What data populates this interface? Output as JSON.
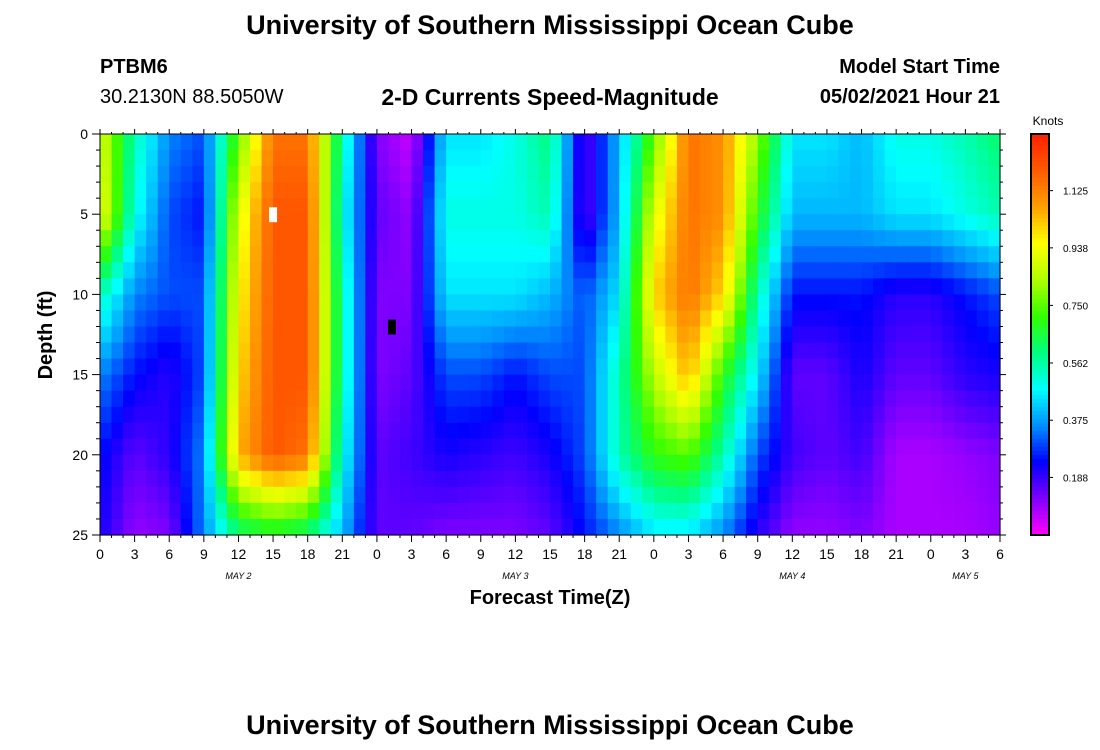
{
  "page": {
    "title_top": "University of Southern Mississippi Ocean Cube",
    "title_bottom": "University of Southern Mississippi Ocean Cube",
    "station": "PTBM6",
    "location": "30.2130N  88.5050W",
    "chart_title": "2-D Currents Speed-Magnitude",
    "model_start_label": "Model Start Time",
    "model_start_value": "05/02/2021 Hour 21"
  },
  "chart_data": {
    "type": "heatmap",
    "title": "2-D Currents Speed-Magnitude",
    "xlabel": "Forecast Time(Z)",
    "ylabel": "Depth (ft)",
    "units_label": "Knots",
    "xlim_hours": [
      0,
      78
    ],
    "ylim": [
      25,
      0
    ],
    "y_ticks": [
      "0",
      "5",
      "10",
      "15",
      "20",
      "25"
    ],
    "x_tick_labels": [
      "0",
      "3",
      "6",
      "9",
      "12",
      "15",
      "18",
      "21",
      "0",
      "3",
      "6",
      "9",
      "12",
      "15",
      "18",
      "21",
      "0",
      "3",
      "6",
      "9",
      "12",
      "15",
      "18",
      "21",
      "0",
      "3",
      "6"
    ],
    "day_labels": [
      {
        "text": "MAY 2",
        "hour": 12
      },
      {
        "text": "MAY 3",
        "hour": 36
      },
      {
        "text": "MAY 4",
        "hour": 60
      },
      {
        "text": "MAY 5",
        "hour": 75
      }
    ],
    "colorbar": {
      "min": 0,
      "max": 1.31,
      "tick_labels": [
        "1.125",
        "0.938",
        "0.750",
        "0.562",
        "0.375",
        "0.188"
      ],
      "tick_values": [
        1.125,
        0.938,
        0.75,
        0.562,
        0.375,
        0.188
      ],
      "colors": [
        "#ff00ff",
        "#8000ff",
        "#0000ff",
        "#0090ff",
        "#00ffff",
        "#00ff80",
        "#33ff00",
        "#b0ff00",
        "#ffff00",
        "#ffa000",
        "#ff5a00",
        "#ff2000"
      ]
    },
    "grid": false,
    "series": [
      {
        "depth_ft": 0,
        "values": [
          0.9,
          0.55,
          0.35,
          0.3,
          0.75,
          1.15,
          1.15,
          0.55,
          0.12,
          0.05,
          0.45,
          0.45,
          0.5,
          0.6,
          0.15,
          0.4,
          0.75,
          1.15,
          1.1,
          0.8,
          0.45,
          0.45,
          0.4,
          0.5,
          0.5,
          0.55,
          0.62
        ]
      },
      {
        "depth_ft": 5,
        "values": [
          0.95,
          0.5,
          0.3,
          0.25,
          0.9,
          1.2,
          1.2,
          0.5,
          0.15,
          0.1,
          0.5,
          0.5,
          0.5,
          0.55,
          0.15,
          0.4,
          0.9,
          1.15,
          1.1,
          0.7,
          0.4,
          0.4,
          0.4,
          0.45,
          0.45,
          0.5,
          0.55
        ]
      },
      {
        "depth_ft": 10,
        "values": [
          0.55,
          0.35,
          0.3,
          0.3,
          0.95,
          1.2,
          1.2,
          0.55,
          0.12,
          0.12,
          0.45,
          0.45,
          0.45,
          0.4,
          0.3,
          0.45,
          1.0,
          1.15,
          1.0,
          0.55,
          0.25,
          0.25,
          0.25,
          0.2,
          0.2,
          0.25,
          0.3
        ]
      },
      {
        "depth_ft": 15,
        "values": [
          0.35,
          0.25,
          0.2,
          0.3,
          1.0,
          1.2,
          1.2,
          0.55,
          0.12,
          0.15,
          0.3,
          0.3,
          0.25,
          0.3,
          0.3,
          0.55,
          0.85,
          1.05,
          0.7,
          0.45,
          0.15,
          0.15,
          0.22,
          0.15,
          0.15,
          0.2,
          0.22
        ]
      },
      {
        "depth_ft": 20,
        "values": [
          0.25,
          0.15,
          0.2,
          0.35,
          1.05,
          1.2,
          1.15,
          0.5,
          0.15,
          0.18,
          0.22,
          0.2,
          0.18,
          0.22,
          0.3,
          0.55,
          0.7,
          0.75,
          0.55,
          0.3,
          0.18,
          0.15,
          0.18,
          0.08,
          0.08,
          0.1,
          0.12
        ]
      },
      {
        "depth_ft": 25,
        "values": [
          0.22,
          0.1,
          0.12,
          0.35,
          0.6,
          0.65,
          0.6,
          0.4,
          0.15,
          0.15,
          0.12,
          0.12,
          0.12,
          0.15,
          0.25,
          0.35,
          0.45,
          0.45,
          0.35,
          0.2,
          0.1,
          0.1,
          0.12,
          0.08,
          0.08,
          0.08,
          0.1
        ]
      }
    ],
    "markers": [
      {
        "hour": 15,
        "depth_ft": 5,
        "color": "#ffffff"
      },
      {
        "hour": 25.3,
        "depth_ft": 12,
        "color": "#000000"
      }
    ]
  }
}
